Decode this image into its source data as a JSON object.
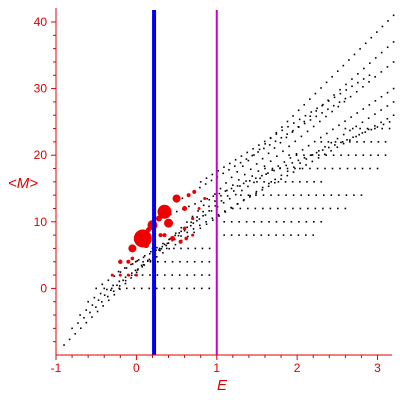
{
  "chart_data": {
    "type": "scatter",
    "title": "",
    "xlabel": "E",
    "ylabel": "<M>",
    "xlim": [
      -1,
      3.18
    ],
    "ylim": [
      -10,
      41.5
    ],
    "xticks": [
      "-1",
      "0",
      "1",
      "2",
      "3"
    ],
    "yticks": [
      "0",
      "10",
      "20",
      "30",
      "40"
    ],
    "colors": {
      "axis": "#dd0000",
      "black_points": "#000000",
      "red_points": "#ee0000",
      "blue_line": "#0000ee",
      "magenta_line": "#cc00cc"
    },
    "vertical_lines": [
      {
        "x": 0.22,
        "color": "#0000ee",
        "label": "blue"
      },
      {
        "x": 1.0,
        "color": "#cc00cc",
        "label": "magenta"
      }
    ],
    "segments": [
      {
        "x0": -0.9,
        "x1": 3.2,
        "y0": -8.5,
        "y1": 41.0,
        "n": 60
      },
      {
        "x0": -0.8,
        "x1": 3.2,
        "y0": -6.0,
        "y1": 37.0,
        "n": 55
      },
      {
        "x0": -0.7,
        "x1": 3.2,
        "y0": -4.0,
        "y1": 34.0,
        "n": 52
      },
      {
        "x0": -0.6,
        "x1": 3.2,
        "y0": -2.0,
        "y1": 28.0,
        "n": 50
      },
      {
        "x0": -0.5,
        "x1": 3.2,
        "y0": 0.0,
        "y1": 30.0,
        "n": 50
      },
      {
        "x0": -0.3,
        "x1": 3.2,
        "y0": 2.0,
        "y1": 26.0,
        "n": 46
      },
      {
        "x0": 0.2,
        "x1": 3.15,
        "y0": 10.0,
        "y1": 25.0,
        "n": 40
      },
      {
        "x0": 0.5,
        "x1": 2.6,
        "y0": 13.0,
        "y1": 28.5,
        "n": 30
      },
      {
        "x0": 0.8,
        "x1": 2.9,
        "y0": 16.0,
        "y1": 32.0,
        "n": 30
      },
      {
        "x0": -0.4,
        "x1": 1.0,
        "y0": 0.0,
        "y1": 0.0,
        "n": 16
      },
      {
        "x0": -0.2,
        "x1": 1.0,
        "y0": 2.0,
        "y1": 2.0,
        "n": 14
      },
      {
        "x0": -0.1,
        "x1": 1.0,
        "y0": 4.0,
        "y1": 4.0,
        "n": 13
      },
      {
        "x0": 0.2,
        "x1": 1.0,
        "y0": 6.0,
        "y1": 6.0,
        "n": 10
      },
      {
        "x0": 1.0,
        "x1": 2.2,
        "y0": 8.0,
        "y1": 8.0,
        "n": 14
      },
      {
        "x0": 1.0,
        "x1": 2.3,
        "y0": 10.0,
        "y1": 10.0,
        "n": 15
      },
      {
        "x0": 1.2,
        "x1": 2.6,
        "y0": 12.0,
        "y1": 12.0,
        "n": 16
      },
      {
        "x0": 1.3,
        "x1": 2.8,
        "y0": 14.0,
        "y1": 14.0,
        "n": 17
      },
      {
        "x0": 1.6,
        "x1": 3.0,
        "y0": 18.0,
        "y1": 18.0,
        "n": 16
      },
      {
        "x0": 1.9,
        "x1": 3.1,
        "y0": 20.0,
        "y1": 20.0,
        "n": 14
      },
      {
        "x0": 2.3,
        "x1": 3.1,
        "y0": 22.0,
        "y1": 22.0,
        "n": 10
      },
      {
        "x0": 2.6,
        "x1": 3.15,
        "y0": 24.0,
        "y1": 24.0,
        "n": 7
      },
      {
        "x0": 1.5,
        "x1": 2.3,
        "y0": 16.0,
        "y1": 16.0,
        "n": 10
      }
    ],
    "red_points": [
      {
        "x": 0.08,
        "y": 7.5,
        "size": 9
      },
      {
        "x": 0.35,
        "y": 11.5,
        "size": 7
      },
      {
        "x": 0.2,
        "y": 9.5,
        "size": 5
      },
      {
        "x": 0.4,
        "y": 9.8,
        "size": 4.5
      },
      {
        "x": 0.5,
        "y": 13.5,
        "size": 4
      },
      {
        "x": -0.05,
        "y": 6.0,
        "size": 4
      },
      {
        "x": 0.12,
        "y": 6.5,
        "size": 3
      },
      {
        "x": 0.28,
        "y": 10.5,
        "size": 3
      },
      {
        "x": 0.6,
        "y": 12.0,
        "size": 2.5
      },
      {
        "x": 0.65,
        "y": 14.0,
        "size": 2
      },
      {
        "x": 0.72,
        "y": 14.5,
        "size": 2
      },
      {
        "x": 0.45,
        "y": 7.5,
        "size": 2.5
      },
      {
        "x": 0.35,
        "y": 8.0,
        "size": 2
      },
      {
        "x": 0.3,
        "y": 8.0,
        "size": 2
      },
      {
        "x": 0.55,
        "y": 7.0,
        "size": 2
      },
      {
        "x": 0.62,
        "y": 7.5,
        "size": 1.8
      },
      {
        "x": -0.2,
        "y": 4.0,
        "size": 2.2
      },
      {
        "x": -0.1,
        "y": 4.0,
        "size": 2
      },
      {
        "x": -0.05,
        "y": 4.5,
        "size": 1.8
      },
      {
        "x": -0.3,
        "y": 2.0,
        "size": 1.5
      },
      {
        "x": -0.2,
        "y": 2.0,
        "size": 1.5
      },
      {
        "x": -0.1,
        "y": 2.0,
        "size": 1.5
      },
      {
        "x": 0.0,
        "y": 2.0,
        "size": 1.5
      },
      {
        "x": 0.6,
        "y": 9.0,
        "size": 1.8
      },
      {
        "x": 0.7,
        "y": 10.5,
        "size": 1.6
      },
      {
        "x": 0.78,
        "y": 12.0,
        "size": 1.5
      },
      {
        "x": 0.85,
        "y": 13.5,
        "size": 1.5
      },
      {
        "x": 0.7,
        "y": 8.0,
        "size": 1.5
      },
      {
        "x": 0.15,
        "y": 8.8,
        "size": 2.5
      }
    ]
  }
}
